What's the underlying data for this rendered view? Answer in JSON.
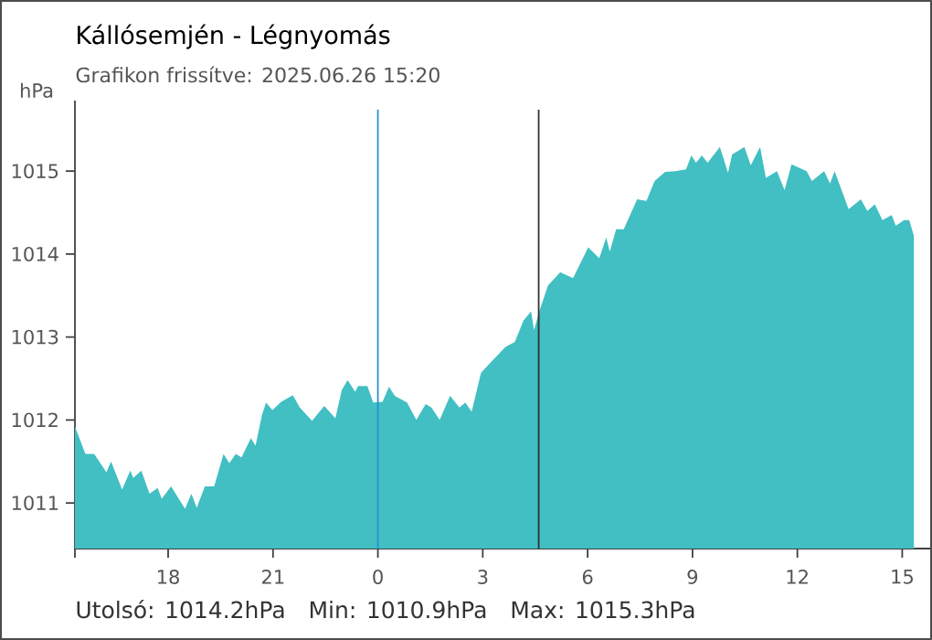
{
  "chart_data": {
    "type": "area",
    "title": "Kállósemjén - Légnyomás",
    "subtitle": "Grafikon frissítve: 2025.06.26 15:20",
    "ylabel": "hPa",
    "annotations": [
      "Utolsó: 1014.2hPa",
      "Min: 1010.9hPa",
      "Max: 1015.3hPa"
    ],
    "x": [
      "2025-06-25T15:20",
      "2025-06-25T15:38",
      "2025-06-25T15:53",
      "2025-06-25T16:14",
      "2025-06-25T16:22",
      "2025-06-25T16:41",
      "2025-06-25T16:55",
      "2025-06-25T17:00",
      "2025-06-25T17:14",
      "2025-06-25T17:28",
      "2025-06-25T17:42",
      "2025-06-25T17:49",
      "2025-06-25T18:05",
      "2025-06-25T18:29",
      "2025-06-25T18:40",
      "2025-06-25T18:49",
      "2025-06-25T19:03",
      "2025-06-25T19:19",
      "2025-06-25T19:35",
      "2025-06-25T19:45",
      "2025-06-25T19:56",
      "2025-06-25T20:06",
      "2025-06-25T20:22",
      "2025-06-25T20:30",
      "2025-06-25T20:41",
      "2025-06-25T20:48",
      "2025-06-25T20:59",
      "2025-06-25T21:14",
      "2025-06-25T21:34",
      "2025-06-25T21:46",
      "2025-06-25T22:07",
      "2025-06-25T22:28",
      "2025-06-25T22:47",
      "2025-06-25T22:58",
      "2025-06-25T23:08",
      "2025-06-25T23:21",
      "2025-06-25T23:26",
      "2025-06-25T23:42",
      "2025-06-25T23:52",
      "2025-06-26T00:08",
      "2025-06-26T00:19",
      "2025-06-26T00:29",
      "2025-06-26T00:50",
      "2025-06-26T01:06",
      "2025-06-26T01:22",
      "2025-06-26T01:32",
      "2025-06-26T01:46",
      "2025-06-26T02:04",
      "2025-06-26T02:20",
      "2025-06-26T02:30",
      "2025-06-26T02:41",
      "2025-06-26T02:57",
      "2025-06-26T03:13",
      "2025-06-26T03:39",
      "2025-06-26T03:55",
      "2025-06-26T04:10",
      "2025-06-26T04:23",
      "2025-06-26T04:28",
      "2025-06-26T04:37",
      "2025-06-26T04:52",
      "2025-06-26T05:13",
      "2025-06-26T05:35",
      "2025-06-26T06:01",
      "2025-06-26T06:20",
      "2025-06-26T06:32",
      "2025-06-26T06:38",
      "2025-06-26T06:49",
      "2025-06-26T07:02",
      "2025-06-26T07:25",
      "2025-06-26T07:41",
      "2025-06-26T07:55",
      "2025-06-26T08:13",
      "2025-06-26T08:30",
      "2025-06-26T08:49",
      "2025-06-26T08:58",
      "2025-06-26T09:06",
      "2025-06-26T09:16",
      "2025-06-26T09:26",
      "2025-06-26T09:47",
      "2025-06-26T10:01",
      "2025-06-26T10:08",
      "2025-06-26T10:29",
      "2025-06-26T10:40",
      "2025-06-26T10:56",
      "2025-06-26T11:06",
      "2025-06-26T11:25",
      "2025-06-26T11:38",
      "2025-06-26T11:50",
      "2025-06-26T12:16",
      "2025-06-26T12:25",
      "2025-06-26T12:46",
      "2025-06-26T12:56",
      "2025-06-26T13:04",
      "2025-06-26T13:28",
      "2025-06-26T13:49",
      "2025-06-26T14:00",
      "2025-06-26T14:13",
      "2025-06-26T14:26",
      "2025-06-26T14:42",
      "2025-06-26T14:49",
      "2025-06-26T15:03",
      "2025-06-26T15:12",
      "2025-06-26T15:20"
    ],
    "series": [
      {
        "color": "#41bfc2",
        "values": [
          1011.92,
          1011.59,
          1011.59,
          1011.37,
          1011.5,
          1011.16,
          1011.39,
          1011.3,
          1011.39,
          1011.11,
          1011.18,
          1011.05,
          1011.2,
          1010.93,
          1011.11,
          1010.94,
          1011.2,
          1011.2,
          1011.59,
          1011.48,
          1011.59,
          1011.55,
          1011.78,
          1011.69,
          1012.06,
          1012.21,
          1012.12,
          1012.22,
          1012.3,
          1012.15,
          1011.99,
          1012.17,
          1012.02,
          1012.36,
          1012.48,
          1012.34,
          1012.41,
          1012.41,
          1012.21,
          1012.22,
          1012.4,
          1012.29,
          1012.21,
          1012.0,
          1012.19,
          1012.15,
          1012.0,
          1012.29,
          1012.15,
          1012.21,
          1012.1,
          1012.57,
          1012.69,
          1012.88,
          1012.94,
          1013.2,
          1013.31,
          1013.08,
          1013.31,
          1013.62,
          1013.78,
          1013.71,
          1014.08,
          1013.95,
          1014.2,
          1014.03,
          1014.3,
          1014.3,
          1014.66,
          1014.64,
          1014.88,
          1014.99,
          1015.0,
          1015.02,
          1015.19,
          1015.1,
          1015.19,
          1015.1,
          1015.29,
          1014.98,
          1015.2,
          1015.29,
          1015.07,
          1015.29,
          1014.92,
          1015.0,
          1014.77,
          1015.08,
          1015.0,
          1014.88,
          1015.0,
          1014.85,
          1015.0,
          1014.54,
          1014.66,
          1014.52,
          1014.6,
          1014.41,
          1014.47,
          1014.34,
          1014.41,
          1014.41,
          1014.22
        ]
      }
    ],
    "xlim": [
      "2025-06-25T15:20",
      "2025-06-26T15:48"
    ],
    "ylim": [
      1010.45,
      1015.85
    ],
    "xticks": [
      {
        "value": "2025-06-25T15:20",
        "label": null
      },
      {
        "value": "2025-06-25T18:00",
        "label": "18"
      },
      {
        "value": "2025-06-25T21:00",
        "label": "21"
      },
      {
        "value": "2025-06-26T00:00",
        "label": "0"
      },
      {
        "value": "2025-06-26T03:00",
        "label": "3"
      },
      {
        "value": "2025-06-26T06:00",
        "label": "6"
      },
      {
        "value": "2025-06-26T09:00",
        "label": "9"
      },
      {
        "value": "2025-06-26T12:00",
        "label": "12"
      },
      {
        "value": "2025-06-26T15:00",
        "label": "15"
      }
    ],
    "yticks": [
      1011,
      1012,
      1013,
      1014,
      1015
    ],
    "ref_lines": [
      {
        "axis": "x",
        "value": "2025-06-26T00:00",
        "color": "#2b8fd6"
      },
      {
        "axis": "x",
        "value": "2025-06-26T04:36",
        "color": "#333333"
      }
    ]
  }
}
